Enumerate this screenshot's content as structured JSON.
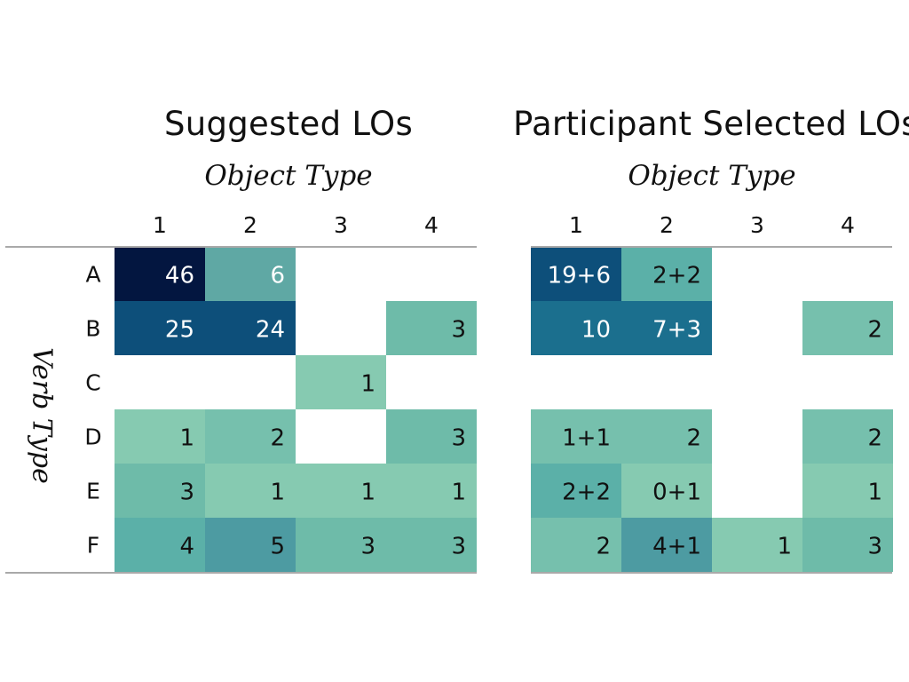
{
  "chart_data": [
    {
      "type": "heatmap",
      "title": "Suggested LOs",
      "xlabel": "Object Type",
      "ylabel": "Verb Type",
      "x": [
        "1",
        "2",
        "3",
        "4"
      ],
      "y": [
        "A",
        "B",
        "C",
        "D",
        "E",
        "F"
      ],
      "values": [
        [
          46,
          6,
          null,
          null
        ],
        [
          25,
          24,
          null,
          3
        ],
        [
          null,
          null,
          1,
          null
        ],
        [
          1,
          2,
          null,
          3
        ],
        [
          3,
          1,
          1,
          1
        ],
        [
          4,
          5,
          3,
          3
        ]
      ],
      "labels": [
        [
          "46",
          "6",
          "",
          ""
        ],
        [
          "25",
          "24",
          "",
          "3"
        ],
        [
          "",
          "",
          "1",
          ""
        ],
        [
          "1",
          "2",
          "",
          "3"
        ],
        [
          "3",
          "1",
          "1",
          "1"
        ],
        [
          "4",
          "5",
          "3",
          "3"
        ]
      ]
    },
    {
      "type": "heatmap",
      "title": "Participant Selected LOs",
      "xlabel": "Object Type",
      "x": [
        "1",
        "2",
        "3",
        "4"
      ],
      "y": [
        "A",
        "B",
        "C",
        "D",
        "E",
        "F"
      ],
      "values": [
        [
          25,
          4,
          null,
          null
        ],
        [
          10,
          10,
          null,
          2
        ],
        [
          null,
          null,
          null,
          null
        ],
        [
          2,
          2,
          null,
          2
        ],
        [
          4,
          1,
          null,
          1
        ],
        [
          2,
          5,
          1,
          3
        ]
      ],
      "labels": [
        [
          "19+6",
          "2+2",
          "",
          ""
        ],
        [
          "10",
          "7+3",
          "",
          "2"
        ],
        [
          "",
          "",
          "",
          ""
        ],
        [
          "1+1",
          "2",
          "",
          "2"
        ],
        [
          "2+2",
          "0+1",
          "",
          "1"
        ],
        [
          "2",
          "4+1",
          "1",
          "3"
        ]
      ]
    }
  ]
}
